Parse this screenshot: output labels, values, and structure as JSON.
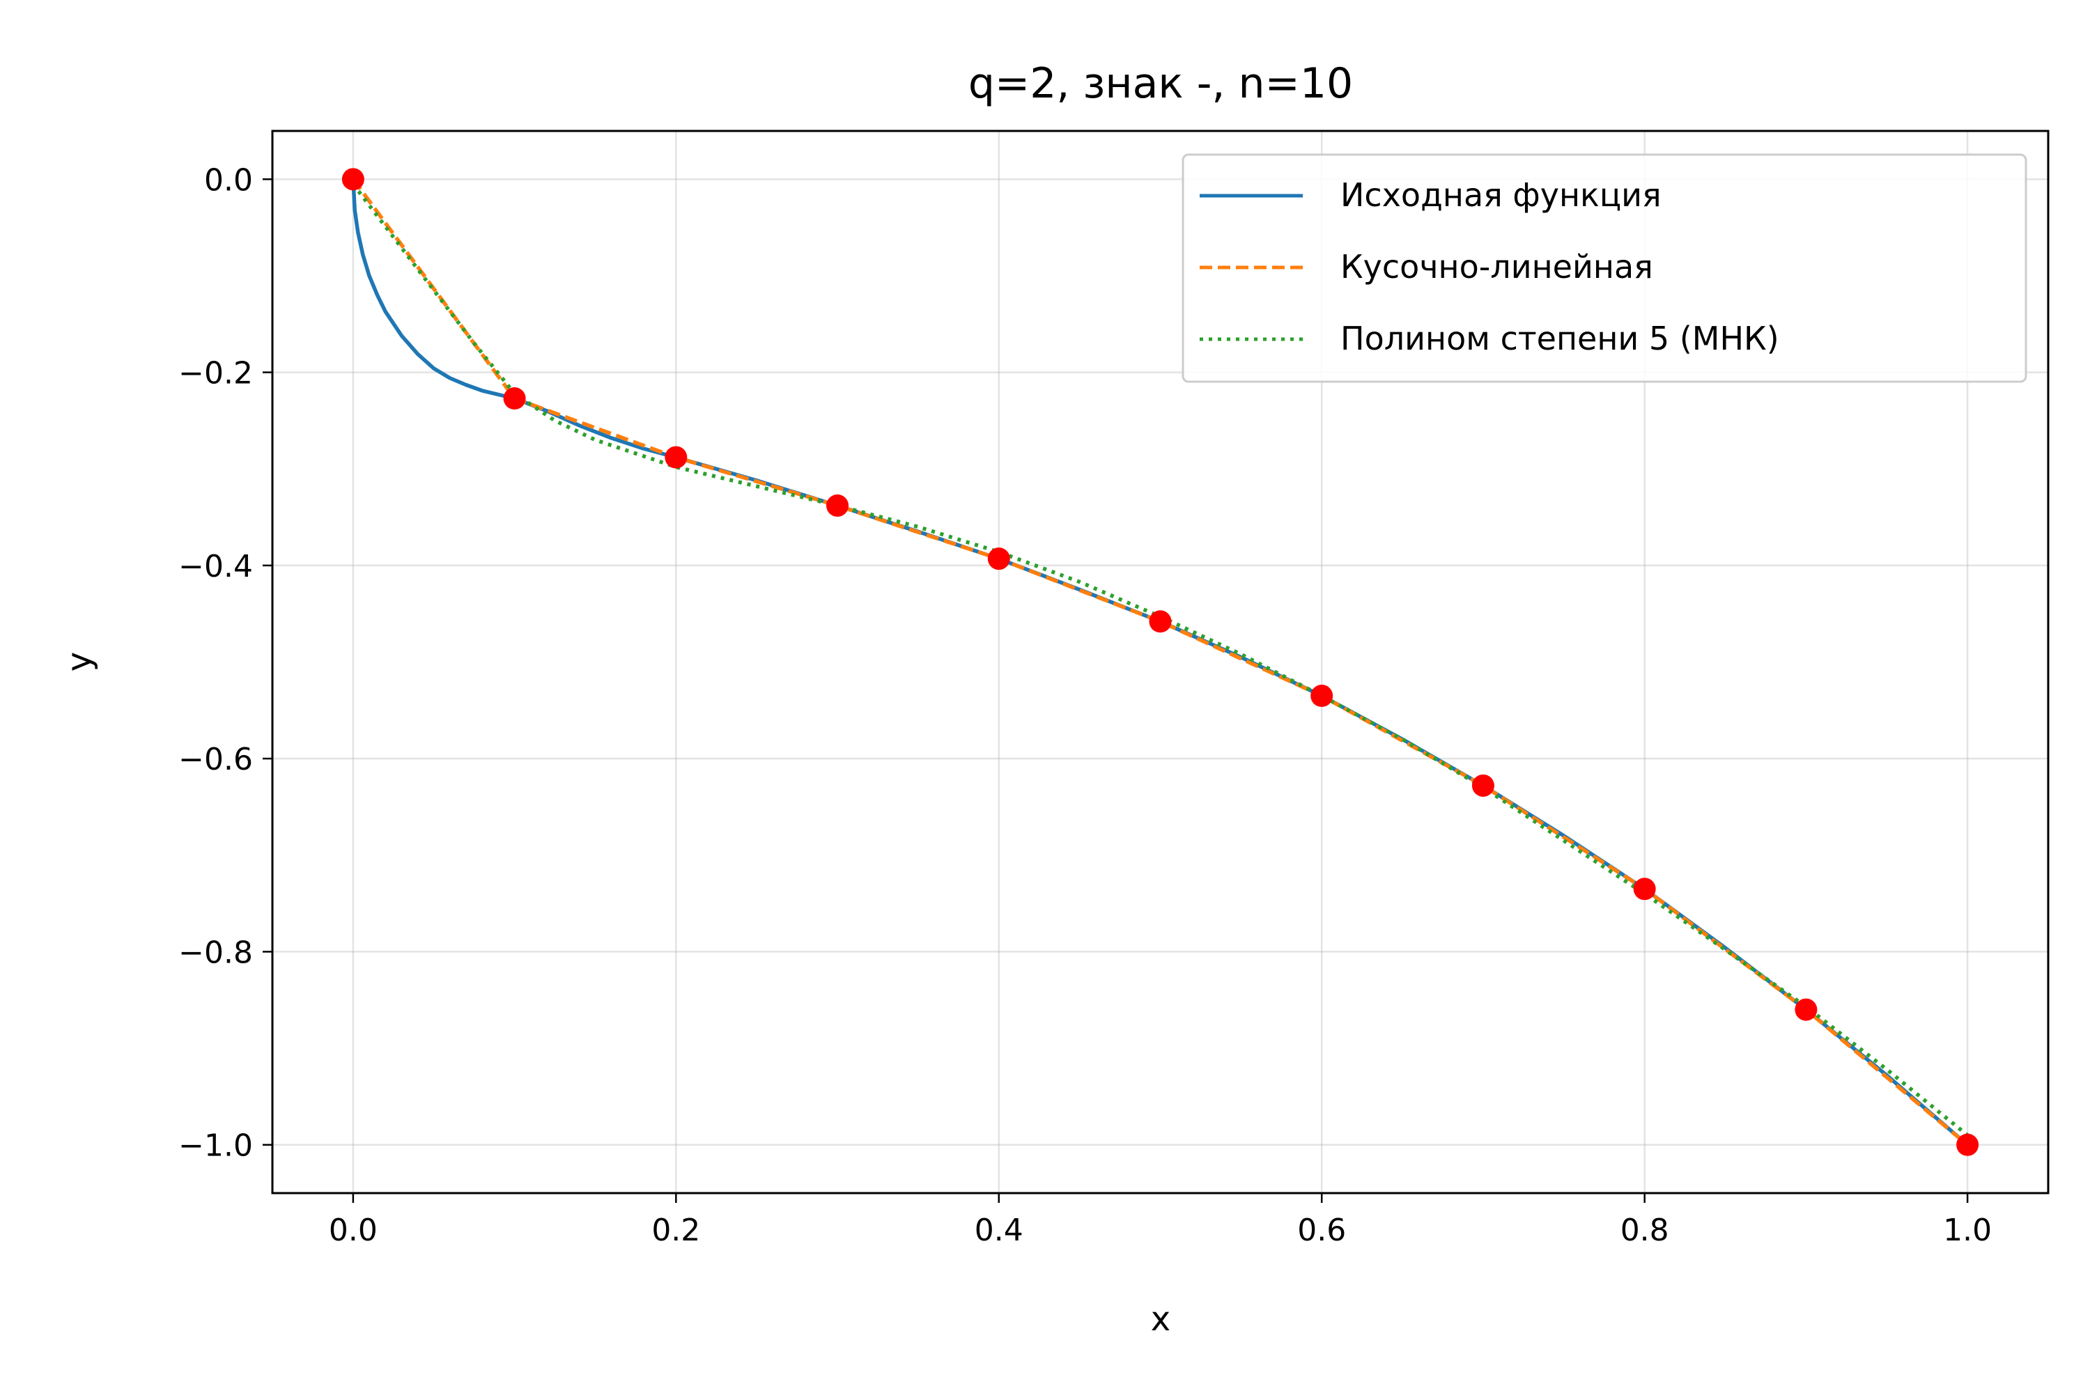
{
  "chart_data": {
    "type": "line",
    "title": "q=2, знак -, n=10",
    "xlabel": "x",
    "ylabel": "y",
    "xlim": [
      -0.05,
      1.05
    ],
    "ylim": [
      -1.05,
      0.05
    ],
    "x_ticks": [
      0.0,
      0.2,
      0.4,
      0.6,
      0.8,
      1.0
    ],
    "x_tick_labels": [
      "0.0",
      "0.2",
      "0.4",
      "0.6",
      "0.8",
      "1.0"
    ],
    "y_ticks": [
      0.0,
      -0.2,
      -0.4,
      -0.6,
      -0.8,
      -1.0
    ],
    "y_tick_labels": [
      "0.0",
      "−0.2",
      "−0.4",
      "−0.6",
      "−0.8",
      "−1.0"
    ],
    "grid": true,
    "legend_position": "top-right",
    "series": [
      {
        "name": "Исходная функция",
        "style": "solid",
        "color": "#1f77b4",
        "x": [
          0,
          0.001,
          0.003,
          0.006,
          0.01,
          0.015,
          0.02,
          0.03,
          0.04,
          0.05,
          0.06,
          0.07,
          0.08,
          0.09,
          0.1,
          0.12,
          0.14,
          0.16,
          0.18,
          0.2,
          0.25,
          0.3,
          0.35,
          0.4,
          0.45,
          0.5,
          0.55,
          0.6,
          0.65,
          0.7,
          0.75,
          0.8,
          0.85,
          0.9,
          0.95,
          1.0
        ],
        "y": [
          0,
          -0.032,
          -0.055,
          -0.078,
          -0.1,
          -0.12,
          -0.137,
          -0.162,
          -0.181,
          -0.196,
          -0.206,
          -0.213,
          -0.219,
          -0.223,
          -0.227,
          -0.24,
          -0.255,
          -0.268,
          -0.279,
          -0.288,
          -0.312,
          -0.338,
          -0.365,
          -0.393,
          -0.425,
          -0.458,
          -0.495,
          -0.535,
          -0.58,
          -0.628,
          -0.68,
          -0.735,
          -0.796,
          -0.86,
          -0.928,
          -1.0
        ]
      },
      {
        "name": "Кусочно-линейная",
        "style": "dashed",
        "color": "#ff7f0e",
        "x": [
          0.0,
          0.1,
          0.2,
          0.3,
          0.4,
          0.5,
          0.6,
          0.7,
          0.8,
          0.9,
          1.0
        ],
        "y": [
          0.0,
          -0.227,
          -0.288,
          -0.338,
          -0.393,
          -0.458,
          -0.535,
          -0.628,
          -0.735,
          -0.86,
          -1.0
        ]
      },
      {
        "name": "Полином степени 5 (МНК)",
        "style": "dotted",
        "color": "#2ca02c",
        "x": [
          0.0,
          0.025,
          0.05,
          0.075,
          0.1,
          0.125,
          0.15,
          0.2,
          0.25,
          0.3,
          0.35,
          0.4,
          0.45,
          0.5,
          0.55,
          0.6,
          0.65,
          0.7,
          0.75,
          0.8,
          0.85,
          0.9,
          0.95,
          1.0
        ],
        "y": [
          -0.005,
          -0.06,
          -0.115,
          -0.17,
          -0.222,
          -0.25,
          -0.27,
          -0.298,
          -0.318,
          -0.338,
          -0.36,
          -0.386,
          -0.417,
          -0.453,
          -0.492,
          -0.535,
          -0.58,
          -0.63,
          -0.685,
          -0.74,
          -0.798,
          -0.857,
          -0.922,
          -0.99
        ]
      },
      {
        "name": "",
        "style": "markers",
        "color": "#ff0000",
        "x": [
          0.0,
          0.1,
          0.2,
          0.3,
          0.4,
          0.5,
          0.6,
          0.7,
          0.8,
          0.9,
          1.0
        ],
        "y": [
          0.0,
          -0.227,
          -0.288,
          -0.338,
          -0.393,
          -0.458,
          -0.535,
          -0.628,
          -0.735,
          -0.86,
          -1.0
        ]
      }
    ]
  }
}
